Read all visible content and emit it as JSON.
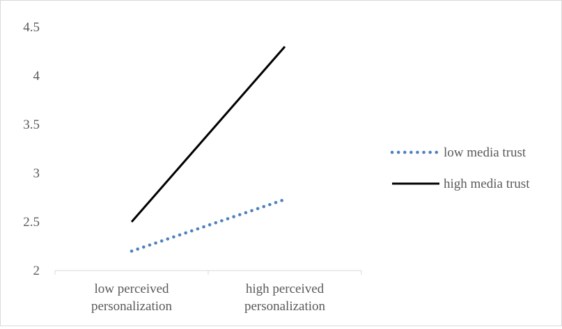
{
  "chart_data": {
    "type": "line",
    "title": "",
    "xlabel": "",
    "ylabel": "",
    "categories": [
      [
        "low perceived",
        "personalization"
      ],
      [
        "high perceived",
        "personalization"
      ]
    ],
    "series": [
      {
        "name": "low media trust",
        "values": [
          2.2,
          2.73
        ],
        "color": "#4f81bd",
        "style": "dotted"
      },
      {
        "name": "high media trust",
        "values": [
          2.5,
          4.3
        ],
        "color": "#000000",
        "style": "solid"
      }
    ],
    "ylim": [
      2,
      4.5
    ],
    "yticks": [
      "2",
      "2.5",
      "3",
      "3.5",
      "4",
      "4.5"
    ],
    "grid": false,
    "legend": "right"
  }
}
